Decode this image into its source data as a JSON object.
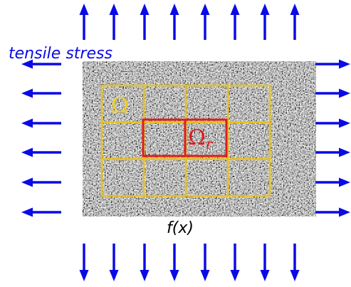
{
  "labels": {
    "stress": "tensile stress",
    "function": "f(x)",
    "region": "Ω",
    "subregion_symbol": "Ω",
    "subregion_subscript": "r"
  },
  "colors": {
    "arrow": "#0a0ae6",
    "grid": "#e8c21a",
    "highlight": "#e01b1b",
    "region_label": "#f0d020",
    "speckle_dark": "#1c1c1c",
    "speckle_light": "#c8c8c8"
  },
  "grid": {
    "rows": 3,
    "cols": 4
  },
  "arrows": {
    "top": 8,
    "bottom": 8,
    "left": 6,
    "right": 6
  }
}
